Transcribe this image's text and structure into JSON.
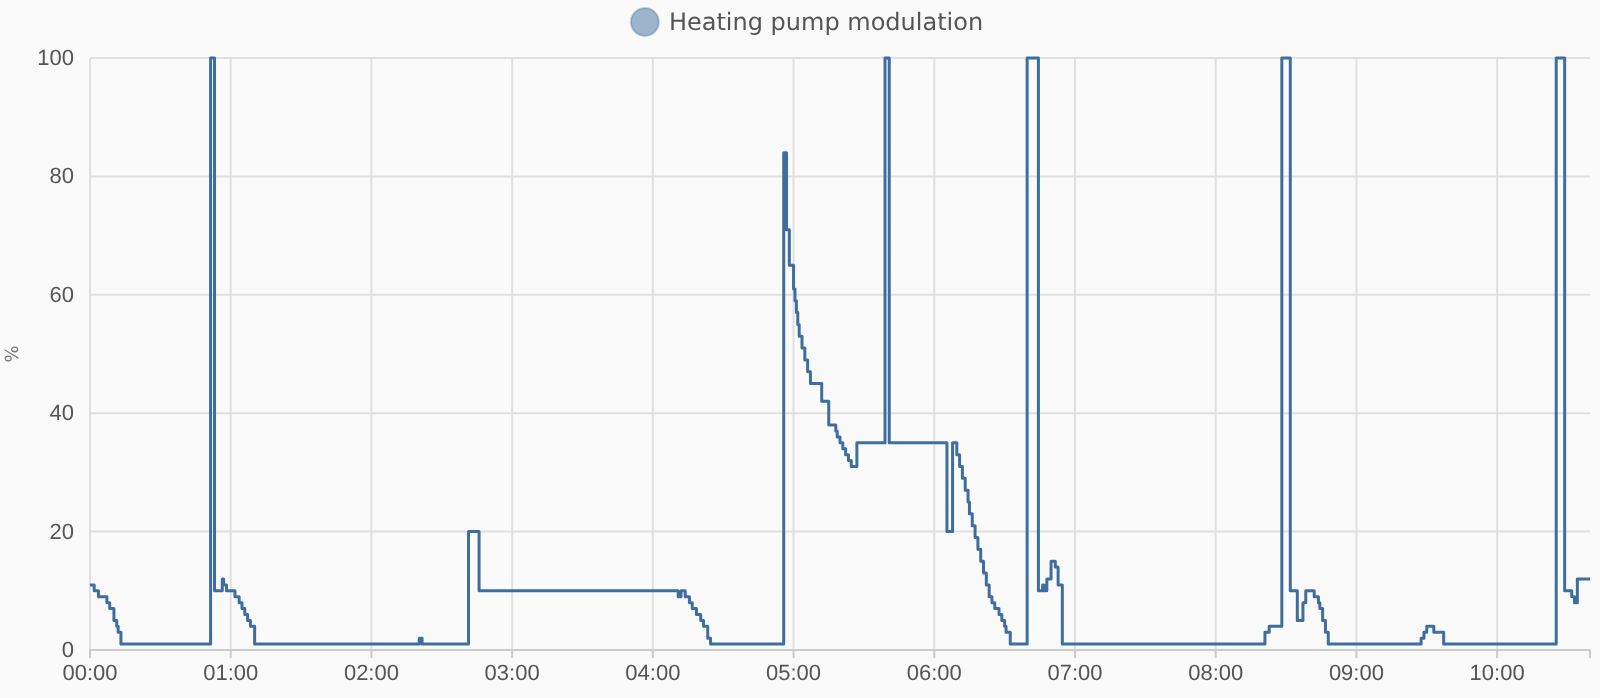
{
  "chart_data": {
    "type": "step",
    "ylabel": "%",
    "legend": "top",
    "grid": true,
    "marker": "none",
    "line_style": "solid",
    "xlim": [
      0,
      10.66
    ],
    "ylim": [
      0,
      100
    ],
    "yticks": [
      0,
      20,
      40,
      60,
      80,
      100
    ],
    "xticks": [
      {
        "value": 0,
        "label": "00:00"
      },
      {
        "value": 1,
        "label": "01:00"
      },
      {
        "value": 2,
        "label": "02:00"
      },
      {
        "value": 3,
        "label": "03:00"
      },
      {
        "value": 4,
        "label": "04:00"
      },
      {
        "value": 5,
        "label": "05:00"
      },
      {
        "value": 6,
        "label": "06:00"
      },
      {
        "value": 7,
        "label": "07:00"
      },
      {
        "value": 8,
        "label": "08:00"
      },
      {
        "value": 9,
        "label": "09:00"
      },
      {
        "value": 10,
        "label": "10:00"
      }
    ],
    "series": [
      {
        "name": "Heating pump modulation",
        "color": "#3e6ea0",
        "x": [
          0,
          0.03,
          0.06,
          0.12,
          0.14,
          0.17,
          0.19,
          0.2,
          0.22,
          0.857,
          0.885,
          0.94,
          0.95,
          0.97,
          1.03,
          1.06,
          1.08,
          1.1,
          1.12,
          1.14,
          1.17,
          2.34,
          2.36,
          2.69,
          2.765,
          4.18,
          4.2,
          4.23,
          4.26,
          4.28,
          4.31,
          4.34,
          4.36,
          4.39,
          4.41,
          4.93,
          4.95,
          4.97,
          5.0,
          5.01,
          5.02,
          5.03,
          5.04,
          5.06,
          5.08,
          5.1,
          5.12,
          5.2,
          5.25,
          5.3,
          5.31,
          5.33,
          5.35,
          5.37,
          5.39,
          5.41,
          5.45,
          5.65,
          5.68,
          6.09,
          6.13,
          6.16,
          6.18,
          6.2,
          6.22,
          6.24,
          6.25,
          6.27,
          6.29,
          6.31,
          6.33,
          6.35,
          6.37,
          6.39,
          6.41,
          6.43,
          6.46,
          6.48,
          6.5,
          6.51,
          6.54,
          6.66,
          6.74,
          6.77,
          6.78,
          6.8,
          6.83,
          6.86,
          6.88,
          6.91,
          8.35,
          8.38,
          8.47,
          8.53,
          8.58,
          8.62,
          8.64,
          8.7,
          8.73,
          8.74,
          8.76,
          8.78,
          8.8,
          9.46,
          9.48,
          9.5,
          9.55,
          9.62,
          10.42,
          10.48,
          10.53,
          10.55,
          10.57,
          10.63,
          10.66
        ],
        "values": [
          11,
          10,
          9,
          8,
          7,
          5,
          4,
          3,
          1,
          100,
          10,
          12,
          11,
          10,
          9,
          8,
          7,
          6,
          5,
          4,
          1,
          2,
          1,
          20,
          10,
          9,
          10,
          9,
          8,
          7,
          6,
          5,
          4,
          2,
          1,
          84,
          71,
          65,
          61,
          59,
          57,
          55,
          53,
          51,
          49,
          47,
          45,
          42,
          38,
          37,
          36,
          35,
          34,
          33,
          32,
          31,
          35,
          100,
          35,
          20,
          35,
          33,
          31,
          29,
          27,
          25,
          23,
          21,
          19,
          17,
          15,
          13,
          11,
          9,
          8,
          7,
          6,
          5,
          4,
          3,
          1,
          100,
          10,
          11,
          10,
          12,
          15,
          14,
          11,
          1,
          3,
          4,
          100,
          10,
          5,
          8,
          10,
          9,
          8,
          7,
          5,
          3,
          1,
          2,
          3,
          4,
          3,
          1,
          100,
          10,
          9,
          8,
          12,
          12,
          12
        ]
      }
    ]
  }
}
